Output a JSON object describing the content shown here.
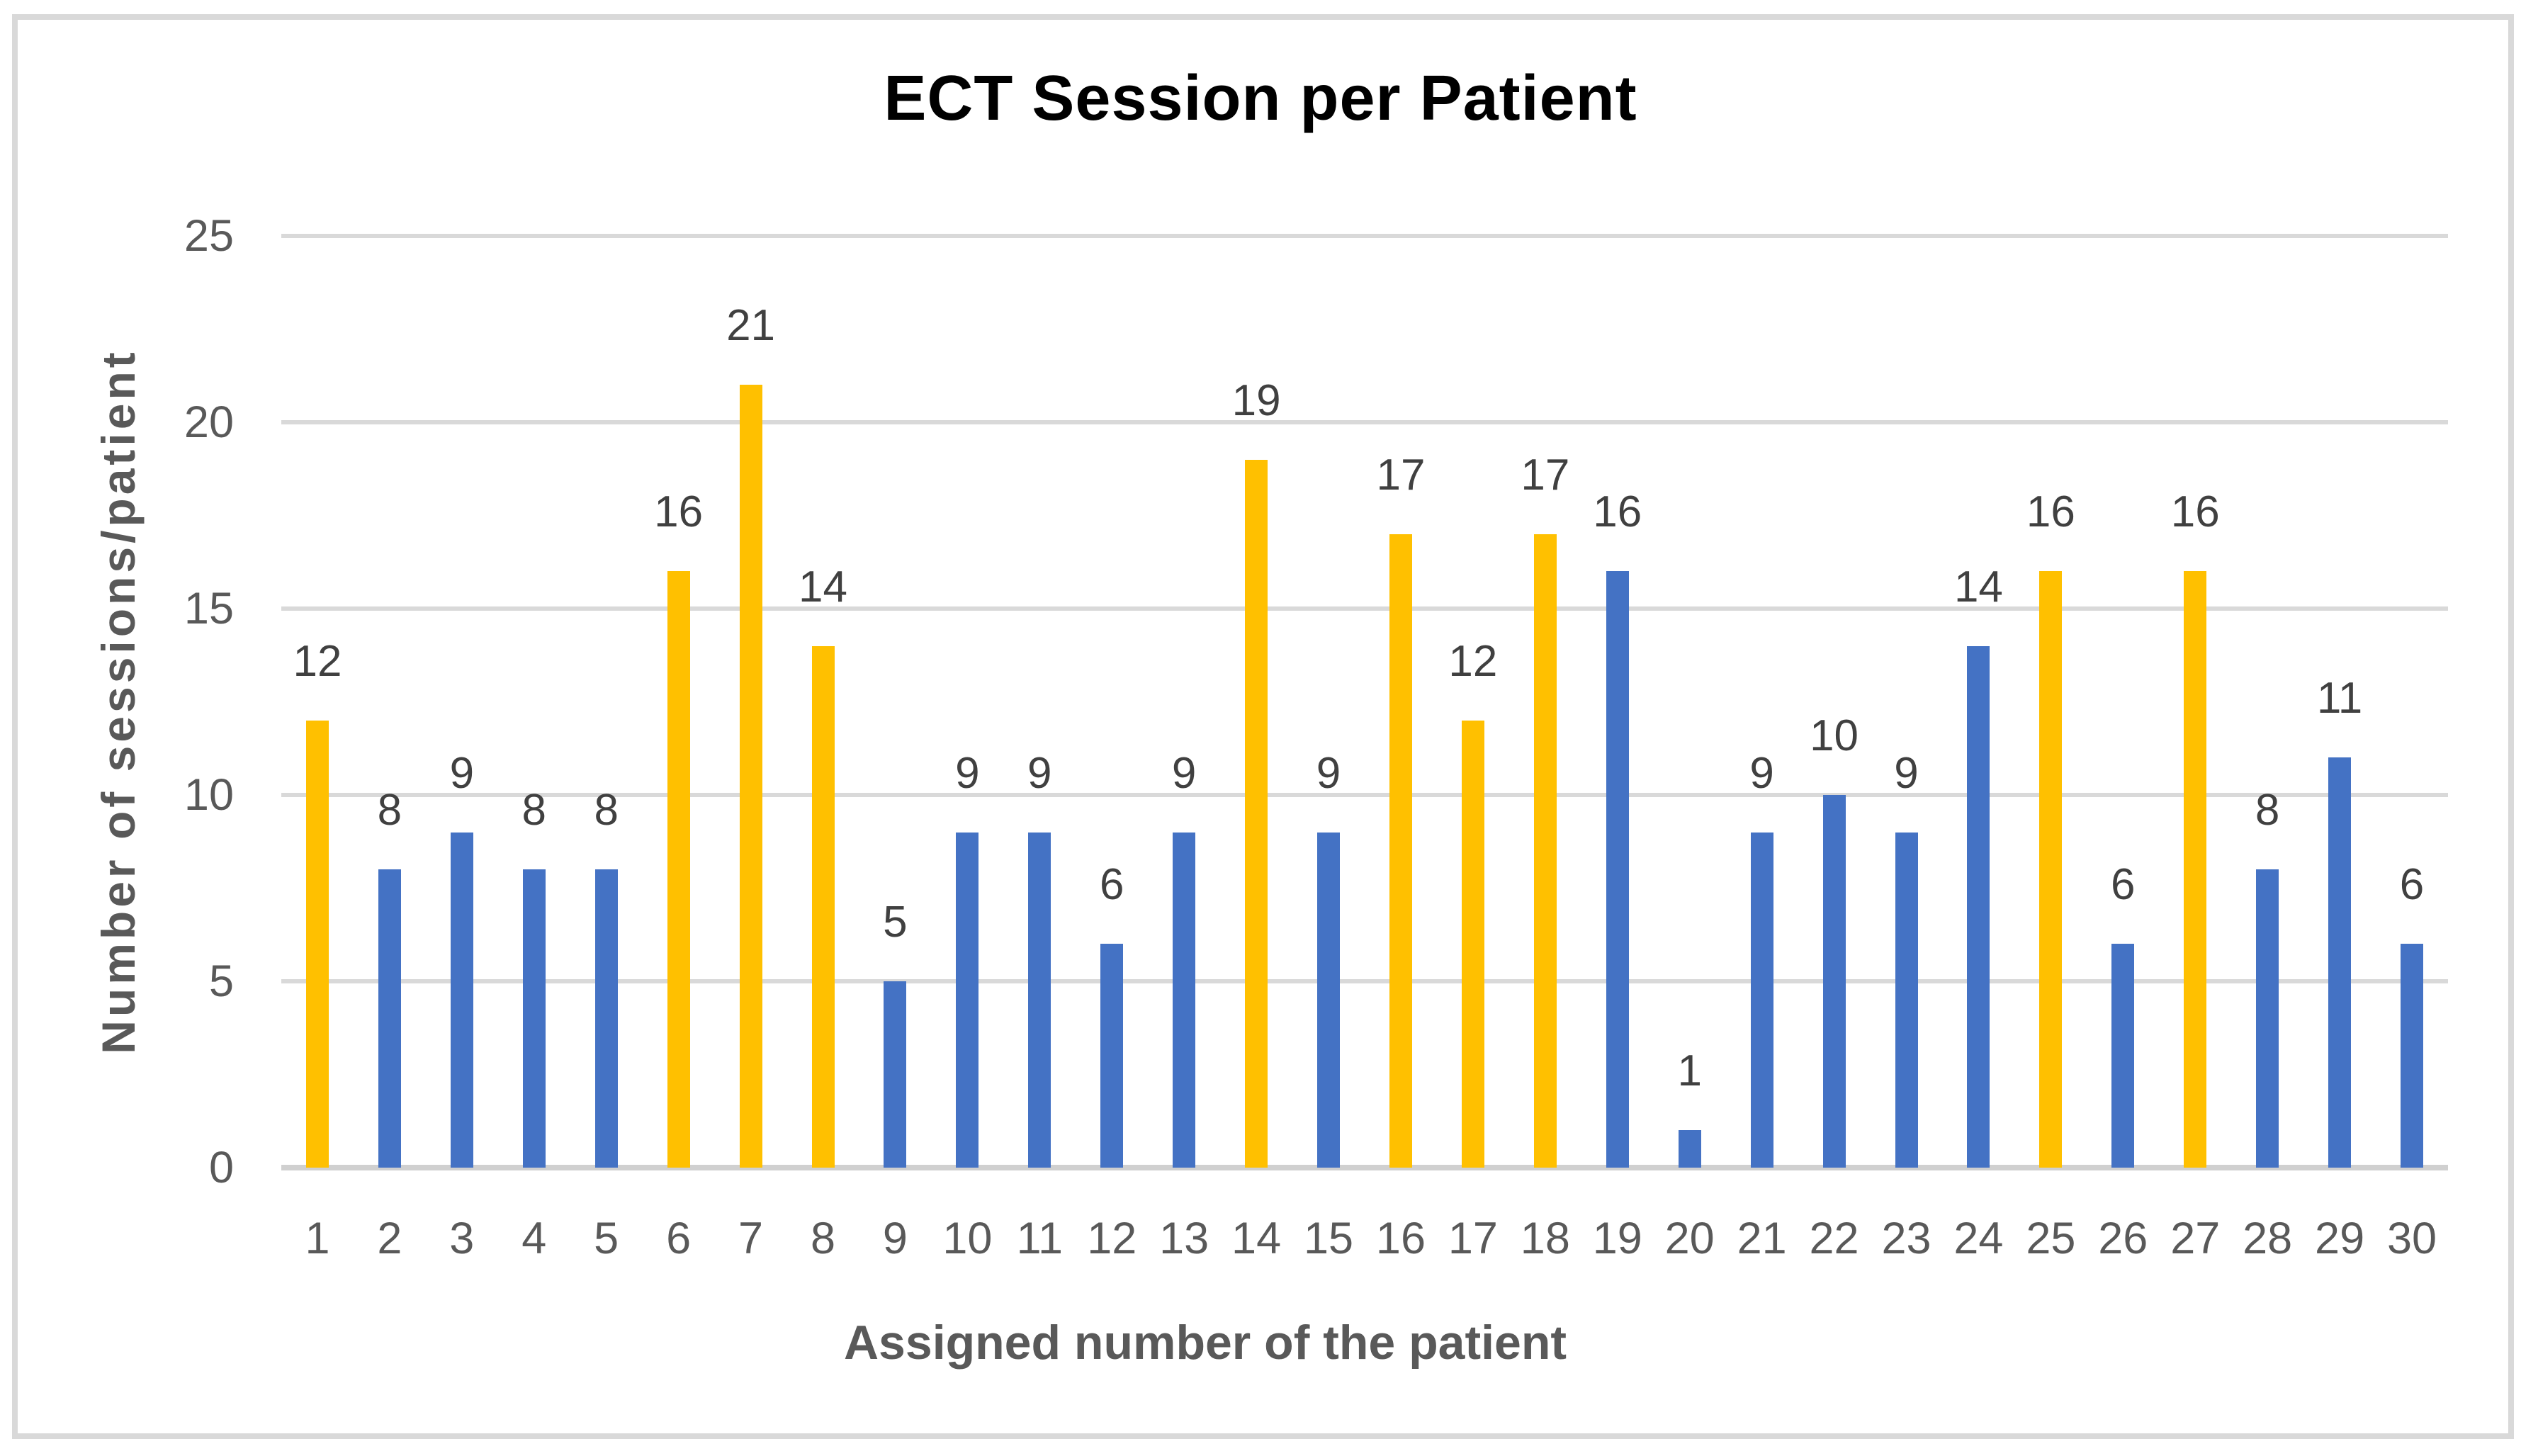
{
  "chart_data": {
    "type": "bar",
    "title": "ECT Session per Patient",
    "xlabel": "Assigned number of the patient",
    "ylabel": "Number of sessions/patient",
    "categories": [
      "1",
      "2",
      "3",
      "4",
      "5",
      "6",
      "7",
      "8",
      "9",
      "10",
      "11",
      "12",
      "13",
      "14",
      "15",
      "16",
      "17",
      "18",
      "19",
      "20",
      "21",
      "22",
      "23",
      "24",
      "25",
      "26",
      "27",
      "28",
      "29",
      "30"
    ],
    "values": [
      12,
      8,
      9,
      8,
      8,
      16,
      21,
      14,
      5,
      9,
      9,
      6,
      9,
      19,
      9,
      17,
      12,
      17,
      16,
      1,
      9,
      10,
      9,
      14,
      16,
      6,
      16,
      8,
      11,
      6
    ],
    "bar_colors": [
      "#FFC000",
      "#4472C4",
      "#4472C4",
      "#4472C4",
      "#4472C4",
      "#FFC000",
      "#FFC000",
      "#FFC000",
      "#4472C4",
      "#4472C4",
      "#4472C4",
      "#4472C4",
      "#4472C4",
      "#FFC000",
      "#4472C4",
      "#FFC000",
      "#FFC000",
      "#FFC000",
      "#4472C4",
      "#4472C4",
      "#4472C4",
      "#4472C4",
      "#4472C4",
      "#4472C4",
      "#FFC000",
      "#4472C4",
      "#FFC000",
      "#4472C4",
      "#4472C4",
      "#4472C4"
    ],
    "palette": {
      "highlight": "#FFC000",
      "normal": "#4472C4"
    },
    "yticks": [
      0,
      5,
      10,
      15,
      20,
      25
    ],
    "ylim": [
      0,
      25
    ],
    "grid": true,
    "gridline_color": "#d9d9d9",
    "legend": "none",
    "data_labels": true
  }
}
